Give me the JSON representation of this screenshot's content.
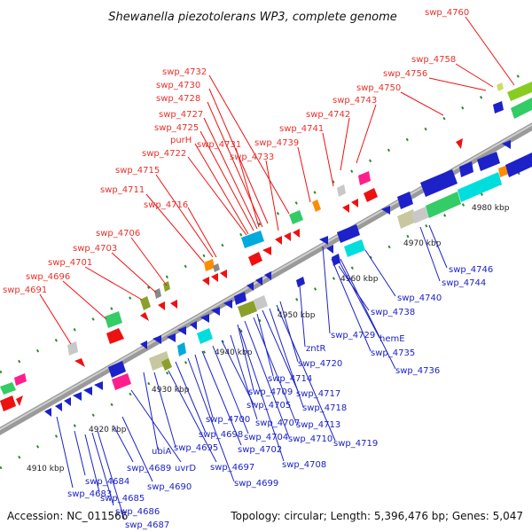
{
  "title": "Shewanella piezotolerans WP3, complete genome",
  "accession": "Accession: NC_011566",
  "summary": "Topology: circular; Length: 5,396,476 bp; Genes: 5,047",
  "colors": {
    "top_strand_label": "#e8312a",
    "bottom_strand_label": "#1c22c8",
    "backbone": "#8a8a8a",
    "tick": "#2e8b2e"
  },
  "kbp_ticks": [
    "4910 kbp",
    "4920 kbp",
    "4930 kbp",
    "4940 kbp",
    "4950 kbp",
    "4960 kbp",
    "4970 kbp",
    "4980 kbp"
  ],
  "top_labels": [
    "swp_4691",
    "swp_4696",
    "swp_4701",
    "swp_4703",
    "swp_4706",
    "swp_4711",
    "swp_4715",
    "swp_4716",
    "swp_4722",
    "purH",
    "swp_4725",
    "swp_4727",
    "swp_4728",
    "swp_4730",
    "swp_4731",
    "swp_4732",
    "swp_4733",
    "swp_4739",
    "swp_4741",
    "swp_4742",
    "swp_4743",
    "swp_4750",
    "swp_4756",
    "swp_4758",
    "swp_4760"
  ],
  "bottom_labels": [
    "swp_4683",
    "swp_4684",
    "swp_4685",
    "swp_4686",
    "swp_4687",
    "swp_4689",
    "uvrD",
    "swp_4690",
    "ubiA",
    "swp_4695",
    "swp_4697",
    "swp_4698",
    "swp_4699",
    "swp_4700",
    "swp_4702",
    "swp_4704",
    "swp_4705",
    "swp_4707",
    "swp_4708",
    "swp_4709",
    "swp_4710",
    "swp_4713",
    "swp_4714",
    "swp_4717",
    "swp_4718",
    "swp_4719",
    "swp_4720",
    "zntR",
    "swp_4729",
    "swp_4735",
    "hemE",
    "swp_4736",
    "swp_4738",
    "swp_4740",
    "swp_4744",
    "swp_4746"
  ]
}
